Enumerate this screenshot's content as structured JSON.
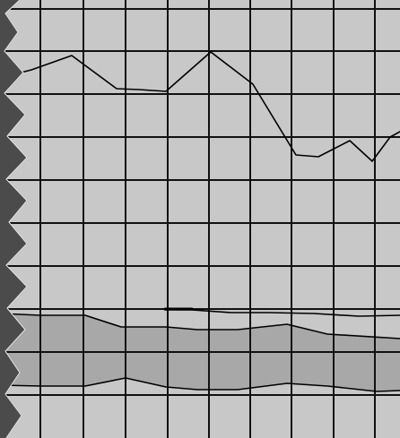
{
  "colors": {
    "background": "#c8c8c8",
    "grid": "#111111",
    "trace": "#000000",
    "band_fill": "#a8a8a8",
    "border_dark": "#4b4b4b",
    "border_light": "#ededed"
  },
  "icons": {
    "left_edge": "zigzag-border-icon"
  },
  "plot": {
    "grid_columns": 9,
    "grid_rows": 10,
    "vertical_line_count": 10,
    "horizontal_line_count": 10
  }
}
